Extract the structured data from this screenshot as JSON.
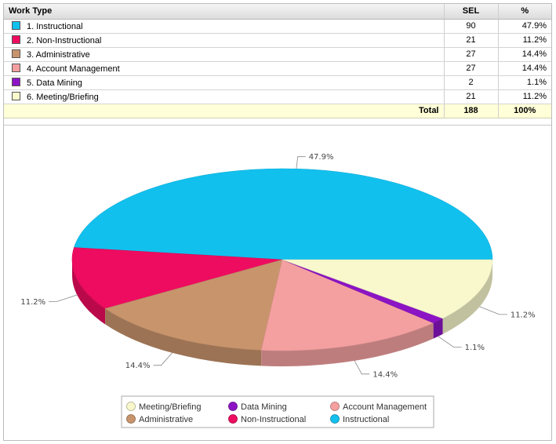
{
  "table": {
    "headers": {
      "work_type": "Work Type",
      "sel": "SEL",
      "pct": "%"
    },
    "rows": [
      {
        "label": "1. Instructional",
        "sel": "90",
        "pct": "47.9%",
        "color": "#12c0ee"
      },
      {
        "label": "2. Non-Instructional",
        "sel": "21",
        "pct": "11.2%",
        "color": "#ee0c60"
      },
      {
        "label": "3. Administrative",
        "sel": "27",
        "pct": "14.4%",
        "color": "#c8946c"
      },
      {
        "label": "4. Account Management",
        "sel": "27",
        "pct": "14.4%",
        "color": "#f4a0a0"
      },
      {
        "label": "5. Data Mining",
        "sel": "2",
        "pct": "1.1%",
        "color": "#8c14c4"
      },
      {
        "label": "6. Meeting/Briefing",
        "sel": "21",
        "pct": "11.2%",
        "color": "#f8f8cc"
      }
    ],
    "total": {
      "label": "Total",
      "sel": "188",
      "pct": "100%"
    }
  },
  "chart_data": {
    "type": "pie",
    "categories": [
      "Instructional",
      "Non-Instructional",
      "Administrative",
      "Account Management",
      "Data Mining",
      "Meeting/Briefing"
    ],
    "values": [
      90,
      21,
      27,
      27,
      2,
      21
    ],
    "data_labels": [
      "47.9%",
      "11.2%",
      "14.4%",
      "14.4%",
      "1.1%",
      "11.2%"
    ],
    "colors": [
      "#12c0ee",
      "#ee0c60",
      "#c8946c",
      "#f4a0a0",
      "#8c14c4",
      "#f8f8cc"
    ],
    "legend": {
      "placement": "bottom-center",
      "order": [
        "Meeting/Briefing",
        "Data Mining",
        "Account Management",
        "Administrative",
        "Non-Instructional",
        "Instructional"
      ]
    },
    "three_d": true
  }
}
